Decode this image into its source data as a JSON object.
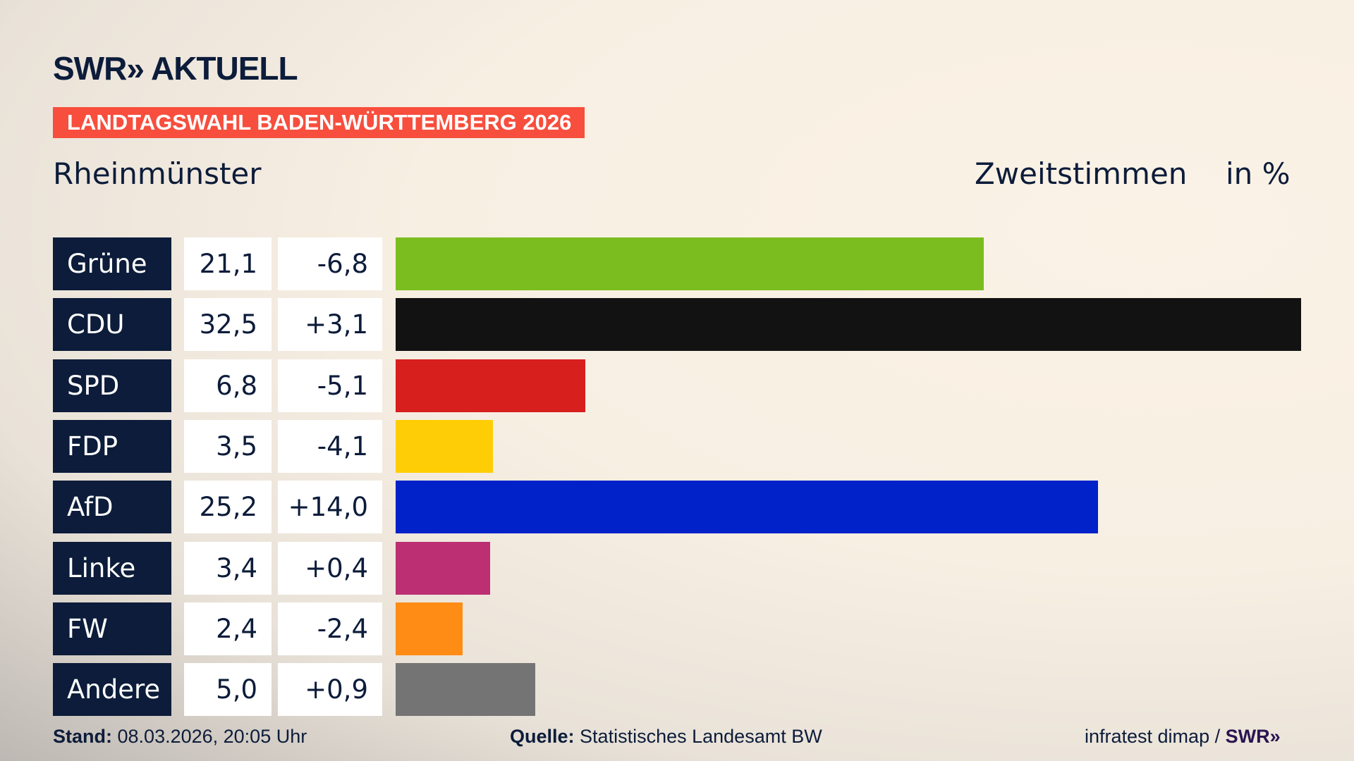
{
  "header": {
    "logo": "SWR» AKTUELL",
    "banner": "LANDTAGSWAHL BADEN-WÜRTTEMBERG 2026",
    "location": "Rheinmünster",
    "vote_type": "Zweitstimmen",
    "unit": "in %"
  },
  "chart_data": {
    "type": "bar",
    "orientation": "horizontal",
    "xlim": [
      0,
      32.5
    ],
    "categories": [
      "Grüne",
      "CDU",
      "SPD",
      "FDP",
      "AfD",
      "Linke",
      "FW",
      "Andere"
    ],
    "values": [
      21.1,
      32.5,
      6.8,
      3.5,
      25.2,
      3.4,
      2.4,
      5.0
    ],
    "values_label": [
      "21,1",
      "32,5",
      "6,8",
      "3,5",
      "25,2",
      "3,4",
      "2,4",
      "5,0"
    ],
    "changes": [
      "-6,8",
      "+3,1",
      "-5,1",
      "-4,1",
      "+14,0",
      "+0,4",
      "-2,4",
      "+0,9"
    ],
    "colors": [
      "#7bbd1f",
      "#121212",
      "#d71f1d",
      "#ffcd05",
      "#0022c8",
      "#bc2f73",
      "#ff8c15",
      "#747474"
    ]
  },
  "footer": {
    "stand_label": "Stand:",
    "stand_value": "08.03.2026, 20:05 Uhr",
    "quelle_label": "Quelle:",
    "quelle_value": "Statistisches Landesamt BW",
    "credit": "infratest dimap /",
    "credit_logo": "SWR»"
  }
}
